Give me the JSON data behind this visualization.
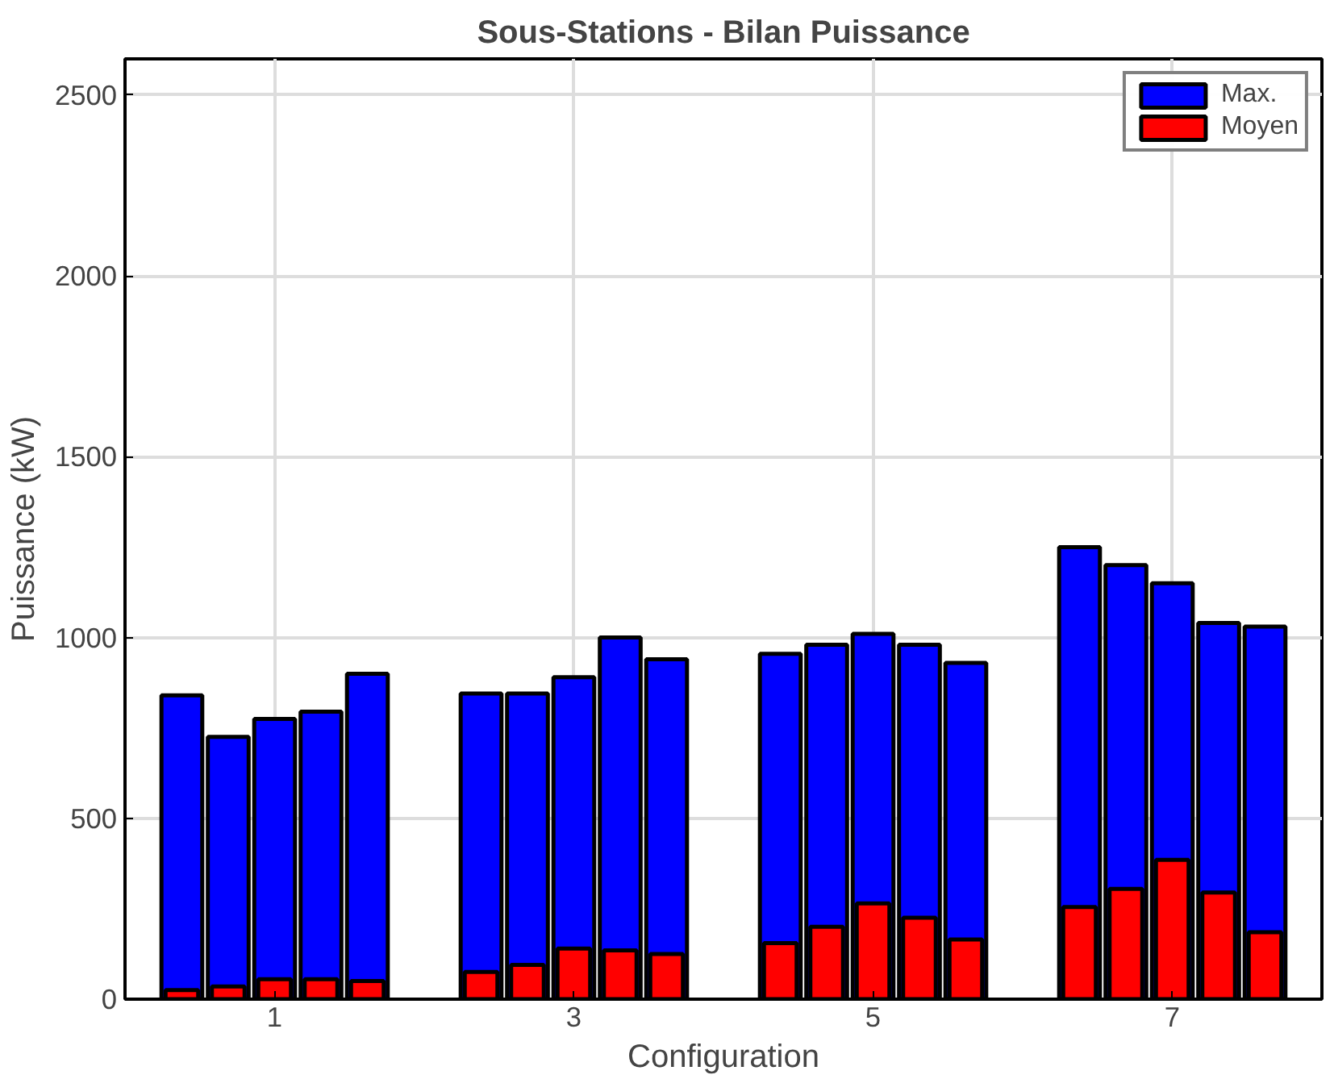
{
  "chart_data": {
    "type": "bar",
    "title": "Sous-Stations - Bilan Puissance",
    "xlabel": "Configuration",
    "ylabel": "Puissance (kW)",
    "series": [
      {
        "name": "Max.",
        "color": "#0000ff",
        "x": [
          0.38,
          0.69,
          1,
          1.31,
          1.62,
          2.38,
          2.69,
          3,
          3.31,
          3.62,
          4.38,
          4.69,
          5,
          5.31,
          5.62,
          6.38,
          6.69,
          7,
          7.31,
          7.62
        ],
        "values": [
          840,
          725,
          775,
          795,
          900,
          845,
          845,
          890,
          1000,
          940,
          955,
          980,
          1010,
          980,
          930,
          1250,
          1200,
          1150,
          1040,
          1030
        ]
      },
      {
        "name": "Moyen",
        "color": "#ff0000",
        "x": [
          0.38,
          0.69,
          1,
          1.31,
          1.62,
          2.38,
          2.69,
          3,
          3.31,
          3.62,
          4.38,
          4.69,
          5,
          5.31,
          5.62,
          6.38,
          6.69,
          7,
          7.31,
          7.62
        ],
        "values": [
          25,
          35,
          55,
          55,
          50,
          75,
          95,
          140,
          135,
          125,
          155,
          200,
          265,
          225,
          165,
          255,
          305,
          385,
          295,
          185
        ]
      }
    ],
    "xlim": [
      0,
      8
    ],
    "xticks": [
      1,
      3,
      5,
      7
    ],
    "ylim": [
      0,
      2600
    ],
    "yticks": [
      0,
      500,
      1000,
      1500,
      2000,
      2500
    ],
    "grid": true,
    "legend": "top right"
  }
}
